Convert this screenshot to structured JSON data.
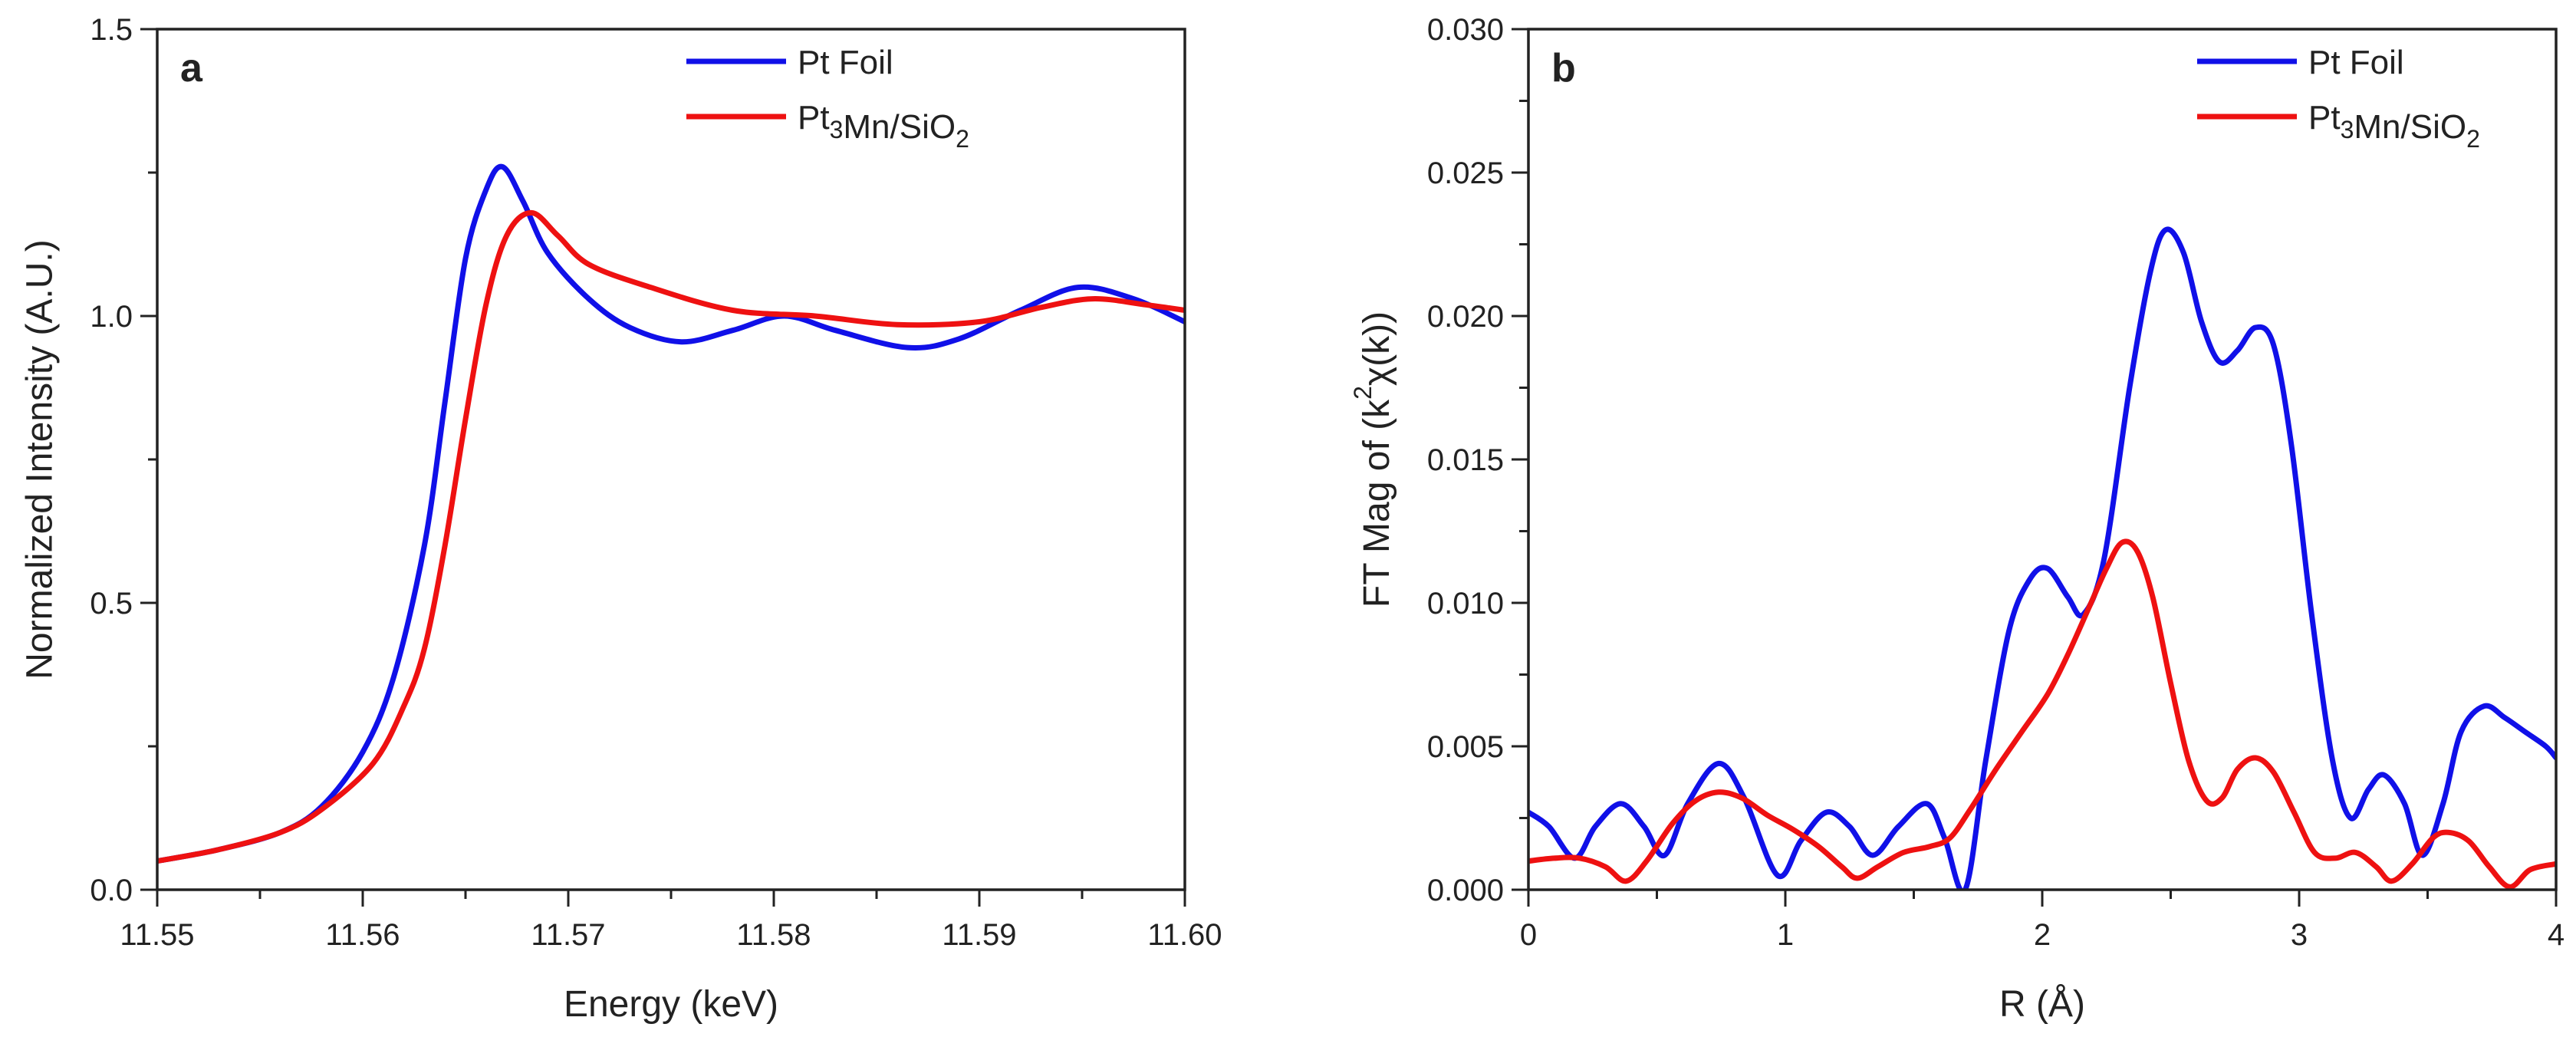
{
  "colors": {
    "blue": "#1010e8",
    "red": "#ee1111",
    "axis": "#222222"
  },
  "chart_data": [
    {
      "panel": "a",
      "type": "line",
      "xlabel": "Energy (keV)",
      "ylabel": "Normalized Intensity (A.U.)",
      "xlim": [
        11.55,
        11.6
      ],
      "ylim": [
        0.0,
        1.5
      ],
      "xticks": [
        "11.55",
        "11.56",
        "11.57",
        "11.58",
        "11.59",
        "11.60"
      ],
      "yticks": [
        "0.0",
        "0.5",
        "1.0",
        "1.5"
      ],
      "xtick_values": [
        11.55,
        11.56,
        11.57,
        11.58,
        11.59,
        11.6
      ],
      "ytick_values": [
        0.0,
        0.5,
        1.0,
        1.5
      ],
      "xminor": 0.005,
      "yminor": 0.25,
      "legend": {
        "position": "top-right",
        "entries": [
          {
            "label": "Pt Foil",
            "sub": "",
            "color": "blue"
          },
          {
            "label": "Pt3Mn/SiO2",
            "sub": "sub",
            "color": "red"
          }
        ]
      },
      "series": [
        {
          "name": "Pt Foil",
          "color": "blue",
          "x": [
            11.55,
            11.553,
            11.556,
            11.558,
            11.56,
            11.5615,
            11.563,
            11.564,
            11.565,
            11.566,
            11.5668,
            11.5678,
            11.569,
            11.571,
            11.573,
            11.5755,
            11.578,
            11.5805,
            11.583,
            11.5865,
            11.589,
            11.592,
            11.5948,
            11.5975,
            11.6
          ],
          "y": [
            0.05,
            0.07,
            0.1,
            0.145,
            0.24,
            0.37,
            0.6,
            0.85,
            1.1,
            1.22,
            1.26,
            1.2,
            1.11,
            1.03,
            0.98,
            0.955,
            0.975,
            1.0,
            0.975,
            0.945,
            0.96,
            1.01,
            1.05,
            1.03,
            0.99
          ]
        },
        {
          "name": "Pt3Mn/SiO2",
          "color": "red",
          "x": [
            11.55,
            11.553,
            11.556,
            11.558,
            11.5605,
            11.562,
            11.563,
            11.564,
            11.565,
            11.566,
            11.567,
            11.5682,
            11.5695,
            11.571,
            11.574,
            11.578,
            11.582,
            11.586,
            11.59,
            11.593,
            11.5955,
            11.598,
            11.6
          ],
          "y": [
            0.05,
            0.07,
            0.1,
            0.14,
            0.22,
            0.32,
            0.42,
            0.6,
            0.82,
            1.02,
            1.14,
            1.18,
            1.14,
            1.09,
            1.05,
            1.01,
            1.0,
            0.985,
            0.99,
            1.015,
            1.03,
            1.02,
            1.01
          ]
        }
      ]
    },
    {
      "panel": "b",
      "type": "line",
      "xlabel": "R (Å)",
      "ylabel": "FT Mag of (k2χ(k))",
      "ylabel_parts": [
        "FT Mag of (k",
        "2",
        "χ(k))"
      ],
      "xlim": [
        0,
        4
      ],
      "ylim": [
        0.0,
        0.03
      ],
      "xticks": [
        "0",
        "1",
        "2",
        "3",
        "4"
      ],
      "yticks": [
        "0.000",
        "0.005",
        "0.010",
        "0.015",
        "0.020",
        "0.025",
        "0.030"
      ],
      "xtick_values": [
        0,
        1,
        2,
        3,
        4
      ],
      "ytick_values": [
        0.0,
        0.005,
        0.01,
        0.015,
        0.02,
        0.025,
        0.03
      ],
      "xminor": 0.5,
      "yminor": 0.0025,
      "legend": {
        "position": "top-right",
        "entries": [
          {
            "label": "Pt Foil",
            "sub": "",
            "color": "blue"
          },
          {
            "label": "Pt3Mn/SiO2",
            "sub": "sub",
            "color": "red"
          }
        ]
      },
      "series": [
        {
          "name": "Pt Foil",
          "color": "blue",
          "x": [
            0,
            0.08,
            0.18,
            0.26,
            0.36,
            0.45,
            0.53,
            0.62,
            0.74,
            0.84,
            0.97,
            1.06,
            1.16,
            1.25,
            1.34,
            1.44,
            1.55,
            1.62,
            1.7,
            1.78,
            1.87,
            1.95,
            2.02,
            2.1,
            2.16,
            2.24,
            2.34,
            2.42,
            2.48,
            2.55,
            2.62,
            2.69,
            2.76,
            2.83,
            2.9,
            2.97,
            3.05,
            3.13,
            3.2,
            3.27,
            3.33,
            3.41,
            3.48,
            3.56,
            3.63,
            3.72,
            3.8,
            3.88,
            3.96,
            4.0
          ],
          "y": [
            0.0027,
            0.0022,
            0.0011,
            0.0022,
            0.003,
            0.0022,
            0.0012,
            0.003,
            0.0044,
            0.0032,
            0.0005,
            0.0017,
            0.0027,
            0.0022,
            0.0012,
            0.0022,
            0.003,
            0.0018,
            0.0,
            0.0045,
            0.009,
            0.0108,
            0.0112,
            0.0102,
            0.0096,
            0.0115,
            0.0175,
            0.0215,
            0.023,
            0.0222,
            0.0198,
            0.0184,
            0.0188,
            0.0196,
            0.019,
            0.0155,
            0.0095,
            0.0045,
            0.0025,
            0.0035,
            0.004,
            0.003,
            0.0012,
            0.003,
            0.0055,
            0.0064,
            0.006,
            0.0055,
            0.005,
            0.0046
          ]
        },
        {
          "name": "Pt3Mn/SiO2",
          "color": "red",
          "x": [
            0,
            0.1,
            0.2,
            0.3,
            0.38,
            0.46,
            0.56,
            0.65,
            0.74,
            0.83,
            0.93,
            1.03,
            1.13,
            1.22,
            1.28,
            1.36,
            1.46,
            1.56,
            1.64,
            1.72,
            1.82,
            1.92,
            2.02,
            2.1,
            2.18,
            2.25,
            2.31,
            2.37,
            2.43,
            2.5,
            2.57,
            2.64,
            2.7,
            2.76,
            2.83,
            2.9,
            2.98,
            3.06,
            3.14,
            3.22,
            3.3,
            3.36,
            3.44,
            3.52,
            3.58,
            3.66,
            3.74,
            3.82,
            3.9,
            4.0
          ],
          "y": [
            0.001,
            0.0011,
            0.0011,
            0.0008,
            0.0003,
            0.001,
            0.0023,
            0.0031,
            0.0034,
            0.0032,
            0.0026,
            0.0021,
            0.0015,
            0.0008,
            0.0004,
            0.0008,
            0.0013,
            0.0015,
            0.0018,
            0.0028,
            0.0042,
            0.0055,
            0.0068,
            0.0082,
            0.0098,
            0.0112,
            0.0121,
            0.0118,
            0.0102,
            0.0072,
            0.0045,
            0.0031,
            0.0032,
            0.0042,
            0.0046,
            0.0041,
            0.0027,
            0.0013,
            0.0011,
            0.0013,
            0.0008,
            0.0003,
            0.0009,
            0.0018,
            0.002,
            0.0017,
            0.0008,
            0.0001,
            0.0007,
            0.0009
          ]
        }
      ]
    }
  ]
}
